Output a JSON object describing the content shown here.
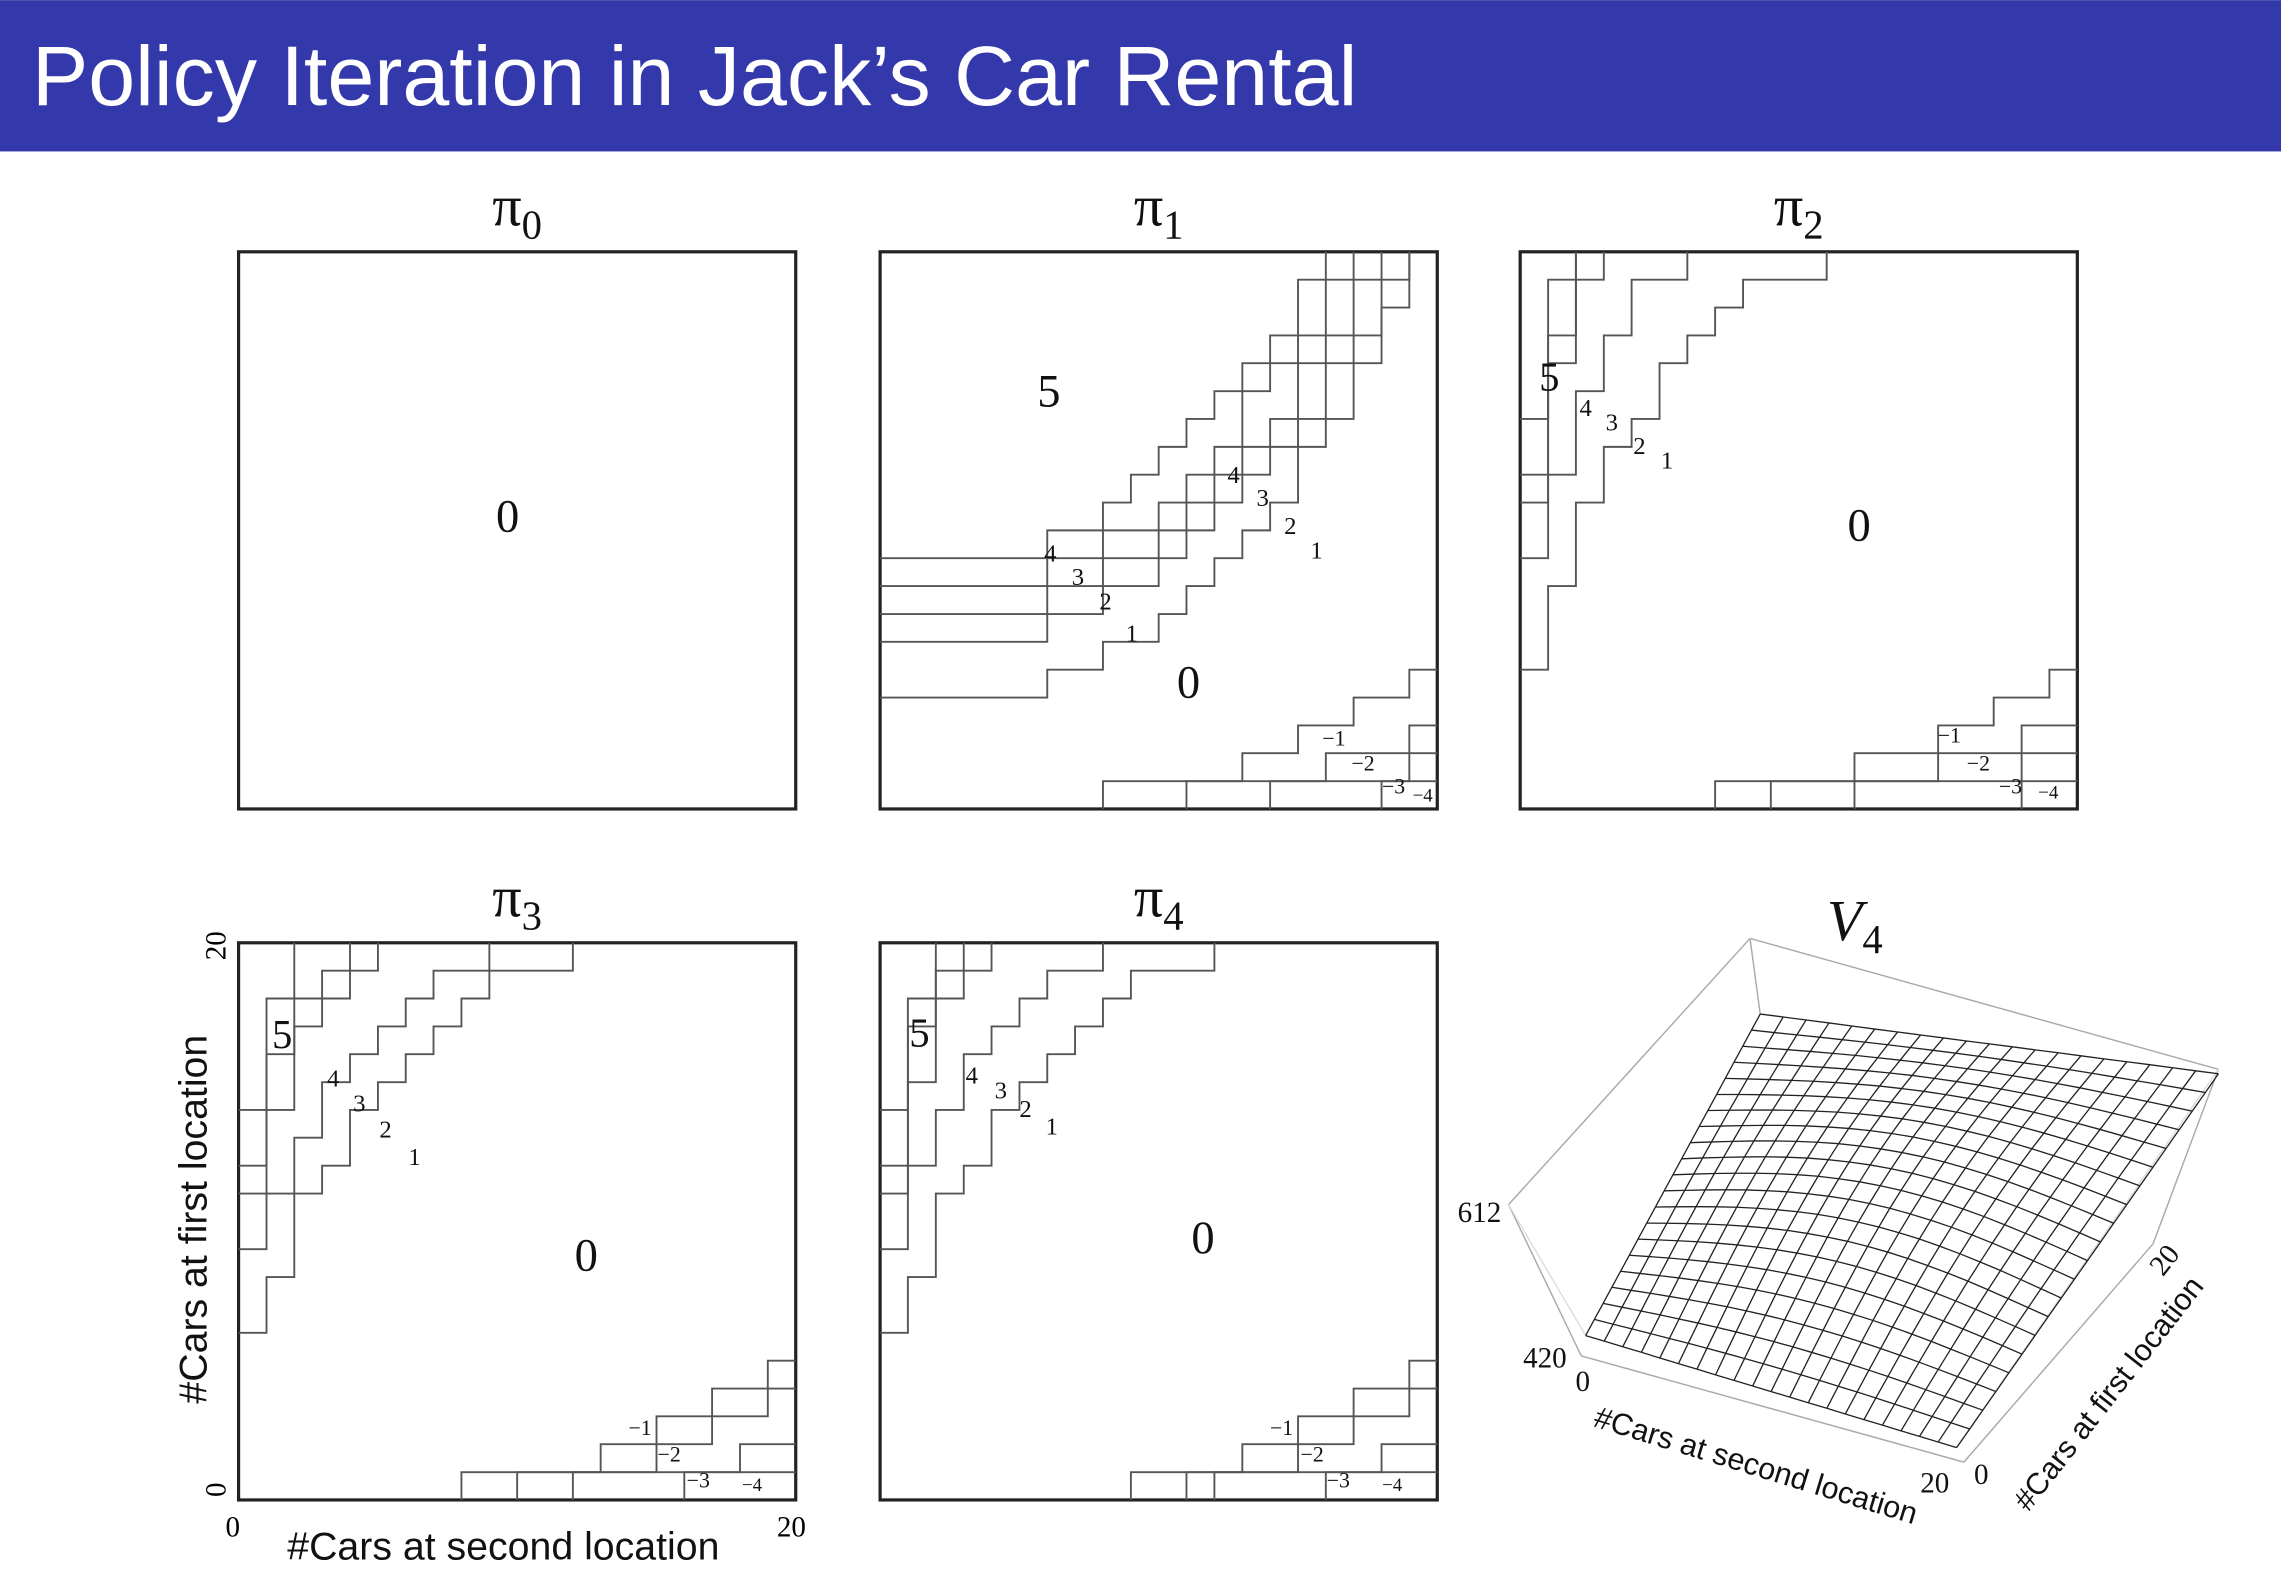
{
  "header": {
    "title": "Policy Iteration in Jack’s Car Rental"
  },
  "panels": [
    {
      "symbol": "π",
      "subscript": "0",
      "labels": [
        "0"
      ]
    },
    {
      "symbol": "π",
      "subscript": "1",
      "labels": [
        "5",
        "0",
        "4",
        "3",
        "2",
        "1",
        "4",
        "3",
        "2",
        "1",
        "−1",
        "−2",
        "−3",
        "−4"
      ]
    },
    {
      "symbol": "π",
      "subscript": "2",
      "labels": [
        "5",
        "4",
        "3",
        "2",
        "1",
        "0",
        "−1",
        "−2",
        "−3",
        "−4"
      ]
    },
    {
      "symbol": "π",
      "subscript": "3",
      "labels": [
        "5",
        "4",
        "3",
        "2",
        "1",
        "0",
        "−1",
        "−2",
        "−3",
        "−4"
      ]
    },
    {
      "symbol": "π",
      "subscript": "4",
      "labels": [
        "5",
        "4",
        "3",
        "2",
        "1",
        "0",
        "−1",
        "−2",
        "−3",
        "−4"
      ]
    }
  ],
  "axes": {
    "y_label": "#Cars at first location",
    "y_ticks": [
      "0",
      "20"
    ],
    "x_label": "#Cars at second location",
    "x_ticks": [
      "0",
      "20"
    ]
  },
  "value_plot": {
    "symbol": "V",
    "subscript": "4",
    "z_ticks": [
      "420",
      "612"
    ],
    "x_label": "#Cars at second location",
    "x_ticks": [
      "0",
      "20"
    ],
    "y_label": "#Cars at first location",
    "y_ticks": [
      "0",
      "20"
    ]
  }
}
